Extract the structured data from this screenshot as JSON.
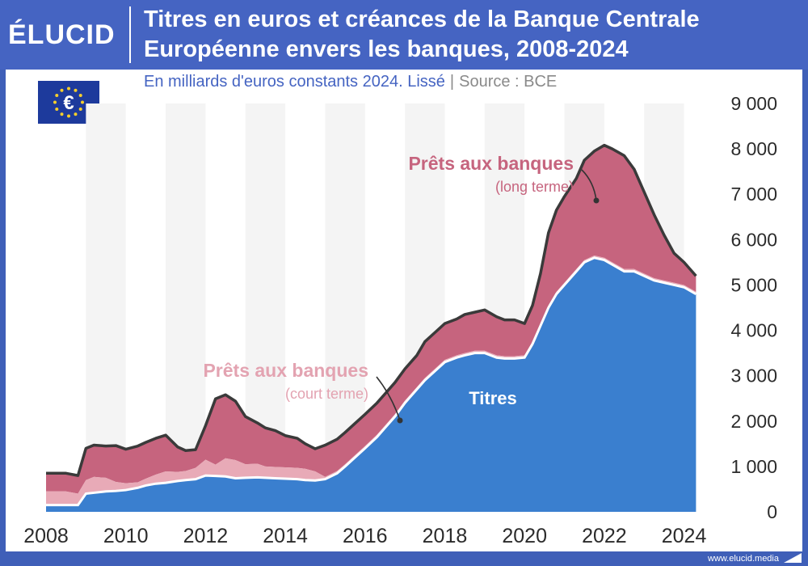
{
  "header": {
    "logo": "ÉLUCID",
    "title_line1": "Titres en euros et créances de la Banque Centrale",
    "title_line2": "Européenne envers les banques, 2008-2024",
    "subtitle": "En milliards d'euros constants 2024. Lissé",
    "source": "Source : BCE"
  },
  "footer": {
    "url": "www.elucid.media"
  },
  "flag_icon": "eu-flag-euro-icon",
  "colors": {
    "background": "#3f5fb8",
    "titres": "#3a7fcf",
    "court_terme": "#e8aab7",
    "long_terme": "#c6647e",
    "outline": "#3a3a3a",
    "grid_band": "#f4f4f4"
  },
  "annotations": {
    "long_title": "Prêts aux banques",
    "long_sub": "(long terme)",
    "court_title": "Prêts aux banques",
    "court_sub": "(court terme)",
    "titres": "Titres"
  },
  "chart_data": {
    "type": "area",
    "stacked": true,
    "title": "Titres en euros et créances de la Banque Centrale Européenne envers les banques, 2008-2024",
    "subtitle": "En milliards d'euros constants 2024. Lissé",
    "xlabel": "",
    "ylabel": "",
    "xlim": [
      2008,
      2024.3
    ],
    "ylim": [
      0,
      9000
    ],
    "x_ticks": [
      "2008",
      "2010",
      "2012",
      "2014",
      "2016",
      "2018",
      "2020",
      "2022",
      "2024"
    ],
    "y_ticks": [
      "0",
      "1 000",
      "2 000",
      "3 000",
      "4 000",
      "5 000",
      "6 000",
      "7 000",
      "8 000",
      "9 000"
    ],
    "y_axis_side": "right",
    "x": [
      2008.0,
      2008.5,
      2008.8,
      2009.0,
      2009.2,
      2009.5,
      2009.75,
      2010.0,
      2010.3,
      2010.5,
      2010.75,
      2011.0,
      2011.3,
      2011.5,
      2011.75,
      2012.0,
      2012.25,
      2012.5,
      2012.75,
      2013.0,
      2013.3,
      2013.5,
      2013.75,
      2014.0,
      2014.3,
      2014.5,
      2014.75,
      2015.0,
      2015.3,
      2015.5,
      2015.75,
      2016.0,
      2016.3,
      2016.5,
      2016.75,
      2017.0,
      2017.3,
      2017.5,
      2017.75,
      2018.0,
      2018.3,
      2018.5,
      2018.75,
      2019.0,
      2019.3,
      2019.5,
      2019.75,
      2020.0,
      2020.2,
      2020.4,
      2020.6,
      2020.8,
      2021.0,
      2021.3,
      2021.5,
      2021.75,
      2022.0,
      2022.2,
      2022.5,
      2022.75,
      2023.0,
      2023.25,
      2023.5,
      2023.75,
      2024.0,
      2024.3
    ],
    "series": [
      {
        "name": "Titres",
        "values": [
          150,
          150,
          150,
          400,
          420,
          450,
          460,
          480,
          530,
          580,
          620,
          640,
          680,
          700,
          720,
          800,
          790,
          780,
          740,
          750,
          760,
          750,
          740,
          730,
          720,
          700,
          690,
          720,
          850,
          1000,
          1200,
          1400,
          1650,
          1850,
          2100,
          2400,
          2700,
          2900,
          3100,
          3300,
          3400,
          3450,
          3500,
          3500,
          3400,
          3380,
          3380,
          3400,
          3700,
          4100,
          4500,
          4800,
          5000,
          5300,
          5500,
          5600,
          5550,
          5450,
          5300,
          5300,
          5200,
          5100,
          5050,
          5000,
          4950,
          4800
        ]
      },
      {
        "name": "Prêts aux banques (court terme)",
        "values": [
          300,
          300,
          250,
          300,
          350,
          300,
          200,
          150,
          120,
          150,
          200,
          250,
          200,
          200,
          250,
          350,
          250,
          400,
          400,
          300,
          300,
          250,
          250,
          250,
          250,
          250,
          200,
          50,
          50,
          50,
          50,
          50,
          50,
          50,
          50,
          50,
          50,
          50,
          50,
          50,
          50,
          50,
          50,
          50,
          50,
          50,
          50,
          50,
          50,
          50,
          50,
          50,
          50,
          50,
          50,
          50,
          50,
          50,
          50,
          50,
          50,
          50,
          50,
          50,
          50,
          50
        ]
      },
      {
        "name": "Prêts aux banques (long terme)",
        "values": [
          400,
          400,
          400,
          700,
          700,
          700,
          800,
          750,
          800,
          800,
          800,
          800,
          550,
          450,
          400,
          750,
          1450,
          1400,
          1300,
          1050,
          900,
          850,
          800,
          700,
          650,
          550,
          500,
          700,
          700,
          700,
          700,
          700,
          700,
          700,
          700,
          700,
          700,
          800,
          800,
          800,
          800,
          850,
          850,
          900,
          850,
          800,
          800,
          700,
          800,
          1100,
          1600,
          1800,
          1900,
          2000,
          2200,
          2300,
          2480,
          2500,
          2500,
          2200,
          1800,
          1400,
          1000,
          650,
          500,
          350
        ]
      }
    ]
  }
}
